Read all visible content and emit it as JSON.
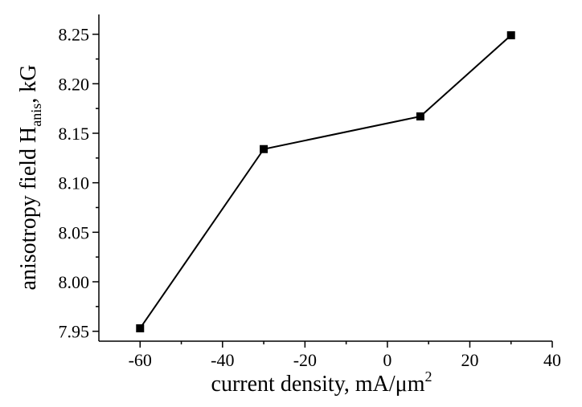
{
  "chart_data": {
    "type": "line",
    "xlabel": {
      "text": "current density, mA/",
      "mu": "μ",
      "unit": "m",
      "sup": "2"
    },
    "ylabel": {
      "text": "anisotropy field H",
      "sub": "anis",
      "suffix": ", kG"
    },
    "xlim": [
      -70,
      40
    ],
    "ylim": [
      7.94,
      8.27
    ],
    "xticks": [
      -60,
      -40,
      -20,
      0,
      20,
      40
    ],
    "xtick_labels": [
      "-60",
      "-40",
      "-20",
      "0",
      "20",
      "40"
    ],
    "yticks": [
      7.95,
      8.0,
      8.05,
      8.1,
      8.15,
      8.2,
      8.25
    ],
    "ytick_labels": [
      "7.95",
      "8.00",
      "8.05",
      "8.10",
      "8.15",
      "8.20",
      "8.25"
    ],
    "grid": false,
    "series": [
      {
        "marker": "square",
        "color": "#000000",
        "points": [
          {
            "x": -60,
            "y": 7.953
          },
          {
            "x": -30,
            "y": 8.134
          },
          {
            "x": 8,
            "y": 8.167
          },
          {
            "x": 30,
            "y": 8.249
          }
        ]
      }
    ]
  }
}
